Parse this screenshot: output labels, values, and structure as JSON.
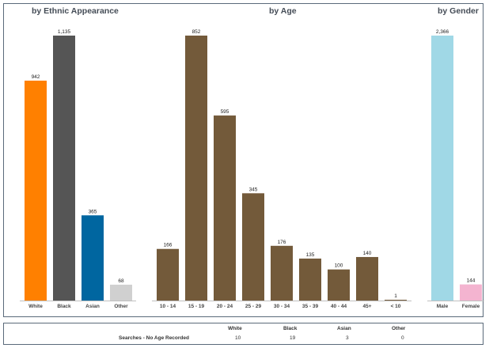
{
  "chart_data": [
    {
      "type": "bar",
      "title": "by Ethnic Appearance",
      "categories": [
        "White",
        "Black",
        "Asian",
        "Other"
      ],
      "values": [
        942,
        1135,
        365,
        68
      ],
      "value_labels": [
        "942",
        "1,135",
        "365",
        "68"
      ],
      "colors": [
        "#ff8000",
        "#555555",
        "#0066a0",
        "#d0d0d0"
      ],
      "ylim": [
        0,
        1135
      ]
    },
    {
      "type": "bar",
      "title": "by Age",
      "categories": [
        "10 - 14",
        "15 - 19",
        "20 - 24",
        "25 - 29",
        "30 - 34",
        "35 - 39",
        "40 - 44",
        "45+",
        "< 10"
      ],
      "values": [
        166,
        852,
        595,
        345,
        176,
        135,
        100,
        140,
        1
      ],
      "value_labels": [
        "166",
        "852",
        "595",
        "345",
        "176",
        "135",
        "100",
        "140",
        "1"
      ],
      "colors": [
        "#735a3a"
      ],
      "ylim": [
        0,
        852
      ]
    },
    {
      "type": "bar",
      "title": "by Gender",
      "categories": [
        "Male",
        "Female"
      ],
      "values": [
        2366,
        144
      ],
      "value_labels": [
        "2,366",
        "144"
      ],
      "colors": [
        "#a0d8e6",
        "#f4b4d0"
      ],
      "ylim": [
        0,
        2366
      ]
    }
  ],
  "no_age_table": {
    "row_label": "Searches - No Age Recorded",
    "columns": [
      "White",
      "Black",
      "Asian",
      "Other"
    ],
    "values": [
      "10",
      "19",
      "3",
      "0"
    ]
  }
}
